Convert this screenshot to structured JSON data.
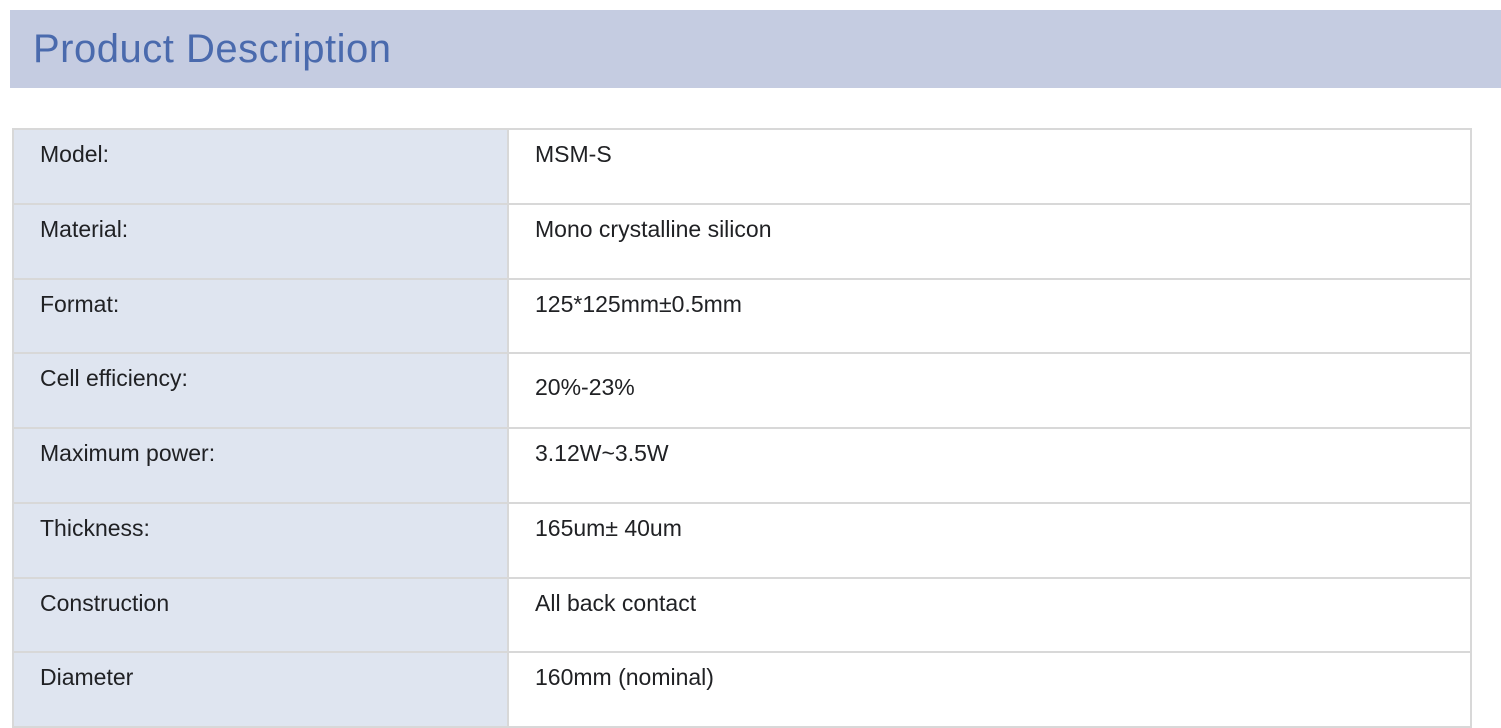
{
  "header": {
    "title": "Product Description"
  },
  "colors": {
    "header_bg": "#c5cce1",
    "header_text": "#4a6aad",
    "label_cell_bg": "#dfe5f0",
    "value_cell_bg": "#ffffff",
    "border": "#d8d8d8",
    "body_text": "#202124"
  },
  "spec_table": {
    "rows": [
      {
        "label": "Model:",
        "value": "MSM-S"
      },
      {
        "label": "Material:",
        "value": "Mono crystalline silicon"
      },
      {
        "label": "Format:",
        "value": "125*125mm±0.5mm"
      },
      {
        "label": "Cell efficiency:",
        "value": "20%-23%"
      },
      {
        "label": "Maximum power:",
        "value": "3.12W~3.5W"
      },
      {
        "label": "Thickness:",
        "value": "165um± 40um"
      },
      {
        "label": "Construction",
        "value": "All back contact"
      },
      {
        "label": "Diameter",
        "value": "160mm (nominal)"
      }
    ]
  }
}
